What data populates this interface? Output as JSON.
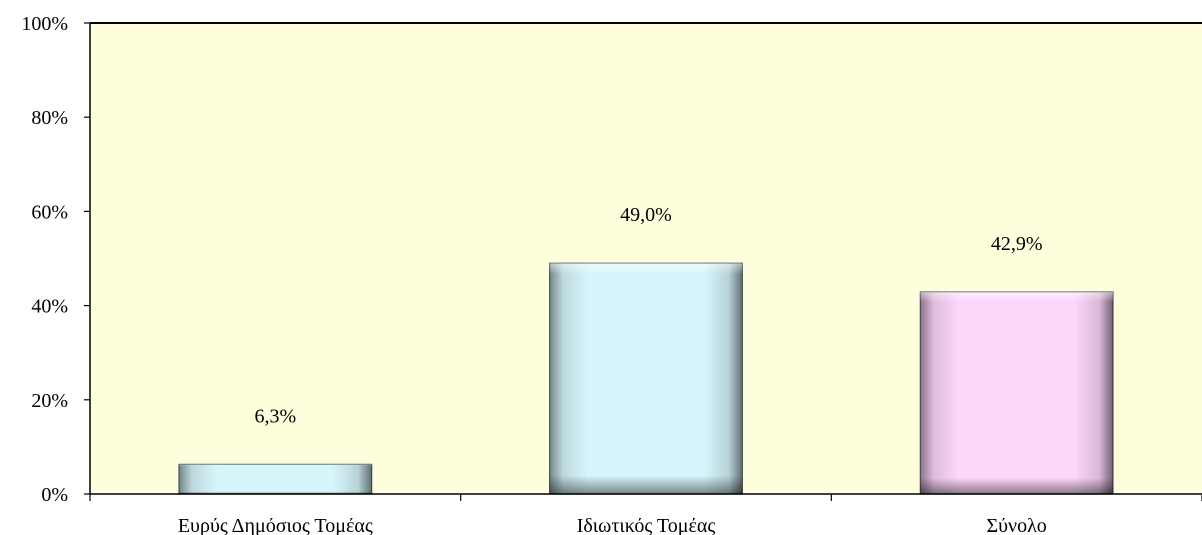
{
  "chart_data": {
    "type": "bar",
    "title": "",
    "xlabel": "",
    "ylabel": "",
    "categories": [
      "Ευρύς Δημόσιος Τομέας",
      "Ιδιωτικός Τομέας",
      "Σύνολο"
    ],
    "values": [
      6.3,
      49.0,
      42.9
    ],
    "value_labels": [
      "6,3%",
      "49,0%",
      "42,9%"
    ],
    "ylim": [
      0,
      100
    ],
    "yticks": [
      0,
      20,
      40,
      60,
      80,
      100
    ],
    "ytick_labels": [
      "0%",
      "20%",
      "40%",
      "60%",
      "80%",
      "100%"
    ],
    "grid": false,
    "legend": "none",
    "colors": {
      "plot_background": "#fefedc",
      "bar_blue": "#d6f6fc",
      "bar_pink": "#fdd6fc",
      "axis": "#000000"
    },
    "bar_colors": [
      "bar_blue",
      "bar_blue",
      "bar_pink"
    ]
  }
}
